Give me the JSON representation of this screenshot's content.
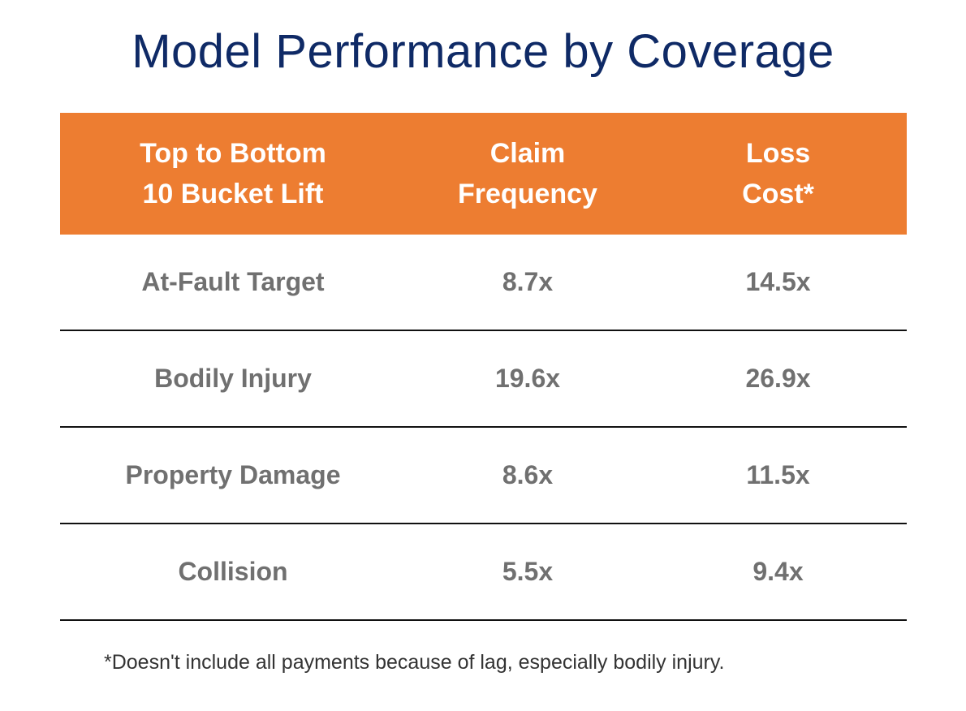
{
  "title": "Model Performance by Coverage",
  "chart_data": {
    "type": "table",
    "title": "Model Performance by Coverage",
    "columns": [
      "Top to Bottom\n10 Bucket Lift",
      "Claim\nFrequency",
      "Loss\nCost*"
    ],
    "rows": [
      {
        "label": "At-Fault Target",
        "claim_frequency": "8.7x",
        "loss_cost": "14.5x"
      },
      {
        "label": "Bodily Injury",
        "claim_frequency": "19.6x",
        "loss_cost": "26.9x"
      },
      {
        "label": "Property Damage",
        "claim_frequency": "8.6x",
        "loss_cost": "11.5x"
      },
      {
        "label": "Collision",
        "claim_frequency": "5.5x",
        "loss_cost": "9.4x"
      }
    ],
    "footnote": "*Doesn't include all payments because of lag, especially bodily injury."
  },
  "colors": {
    "title": "#0f2a66",
    "header_background": "#ed7d31",
    "header_text": "#ffffff",
    "cell_text": "#707070",
    "rule": "#111111"
  }
}
